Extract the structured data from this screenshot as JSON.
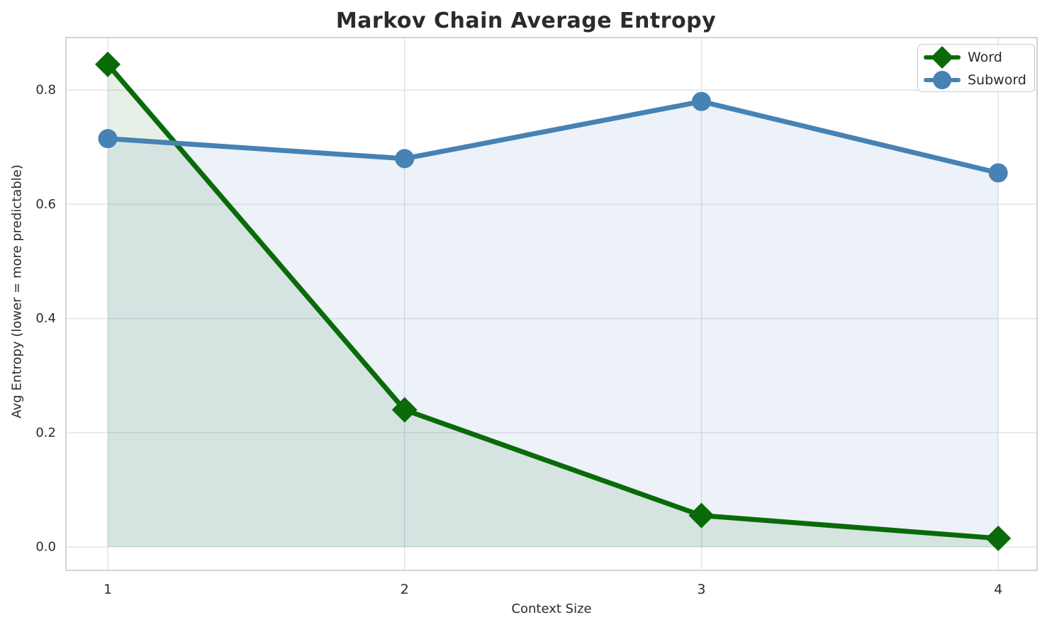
{
  "figure": {
    "title": "Markov Chain Average Entropy"
  },
  "chart_data": {
    "type": "line",
    "title": "Markov Chain Average Entropy",
    "xlabel": "Context Size",
    "ylabel": "Avg Entropy (lower = more predictable)",
    "x": [
      1,
      2,
      3,
      4
    ],
    "series": [
      {
        "name": "Word",
        "values": [
          0.845,
          0.24,
          0.055,
          0.015
        ],
        "color": "#0a6a0a",
        "marker": "diamond",
        "fill_to_zero": true,
        "fill_alpha": 0.1
      },
      {
        "name": "Subword",
        "values": [
          0.715,
          0.68,
          0.78,
          0.655
        ],
        "color": "#4682b4",
        "marker": "circle",
        "fill_to_zero": true,
        "fill_alpha": 0.1
      }
    ],
    "xticks": {
      "values": [
        1,
        2,
        3,
        4
      ],
      "labels": [
        "1",
        "2",
        "3",
        "4"
      ]
    },
    "yticks": {
      "values": [
        0.0,
        0.2,
        0.4,
        0.6,
        0.8
      ],
      "labels": [
        "0.0",
        "0.2",
        "0.4",
        "0.6",
        "0.8"
      ]
    },
    "xlim": [
      0.859,
      4.131
    ],
    "ylim": [
      -0.041,
      0.892
    ],
    "grid": true,
    "legend_position": "upper right",
    "colors": {
      "grid": "#e5e5e9",
      "plot_border": "#d3d3d7",
      "tick_text": "#2b2b2b",
      "title_text": "#2b2b2b",
      "background": "#ffffff"
    },
    "line_width": 7,
    "marker_sizes": {
      "diamond_half_diagonal": 18,
      "circle_radius": 13.5
    }
  }
}
